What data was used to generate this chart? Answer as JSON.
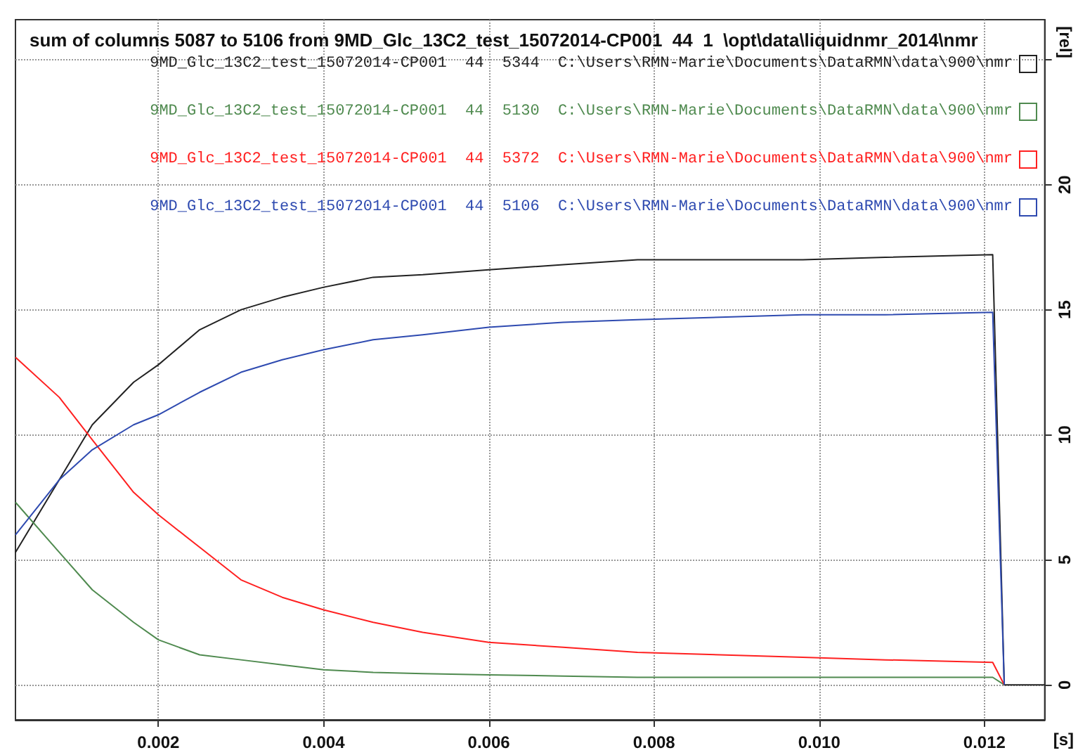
{
  "chart_data": {
    "type": "line",
    "title": "sum of columns 5087 to 5106 from 9MD_Glc_13C2_test_15072014-CP001  44  1  \\opt\\data\\liquidnmr_2014\\nmr",
    "xlabel": "[s]",
    "ylabel": "[rel]",
    "x": [
      0.00027,
      0.0008,
      0.0012,
      0.0017,
      0.002,
      0.0025,
      0.003,
      0.0035,
      0.004,
      0.0046,
      0.0052,
      0.006,
      0.0069,
      0.0078,
      0.0088,
      0.0098,
      0.0108,
      0.0121,
      0.01224
    ],
    "series": [
      {
        "name": "9MD_Glc_13C2_test_15072014-CP001  44  5344  C:\\Users\\RMN-Marie\\Documents\\DataRMN\\data\\900\\nmr",
        "color": "#222222",
        "x": [
          0.00027,
          0.0008,
          0.0012,
          0.0017,
          0.002,
          0.0025,
          0.003,
          0.0035,
          0.004,
          0.0046,
          0.0052,
          0.006,
          0.0069,
          0.0078,
          0.0088,
          0.0098,
          0.0108,
          0.0121,
          0.01224,
          0.01273
        ],
        "values": [
          5.3,
          8.2,
          10.4,
          12.1,
          12.8,
          14.2,
          15.0,
          15.5,
          15.9,
          16.3,
          16.4,
          16.6,
          16.8,
          17.0,
          17.0,
          17.0,
          17.1,
          17.2,
          0,
          0
        ]
      },
      {
        "name": "9MD_Glc_13C2_test_15072014-CP001  44  5130  C:\\Users\\RMN-Marie\\Documents\\DataRMN\\data\\900\\nmr",
        "color": "#4f8a4f",
        "values": [
          7.3,
          5.3,
          3.8,
          2.5,
          1.8,
          1.2,
          1.0,
          0.8,
          0.6,
          0.5,
          0.45,
          0.4,
          0.35,
          0.3,
          0.3,
          0.3,
          0.3,
          0.3,
          0
        ]
      },
      {
        "name": "9MD_Glc_13C2_test_15072014-CP001  44  5372  C:\\Users\\RMN-Marie\\Documents\\DataRMN\\data\\900\\nmr",
        "color": "#ff2020",
        "values": [
          13.1,
          11.5,
          9.8,
          7.7,
          6.8,
          5.5,
          4.2,
          3.5,
          3.0,
          2.5,
          2.1,
          1.7,
          1.5,
          1.3,
          1.2,
          1.1,
          1.0,
          0.9,
          0
        ]
      },
      {
        "name": "9MD_Glc_13C2_test_15072014-CP001  44  5106  C:\\Users\\RMN-Marie\\Documents\\DataRMN\\data\\900\\nmr",
        "color": "#2e4ab0",
        "values": [
          6.0,
          8.2,
          9.4,
          10.4,
          10.8,
          11.7,
          12.5,
          13.0,
          13.4,
          13.8,
          14.0,
          14.3,
          14.5,
          14.6,
          14.7,
          14.8,
          14.8,
          14.9,
          0
        ]
      }
    ],
    "xlim": [
      0.00027,
      0.01273
    ],
    "xticks": [
      {
        "value": 0.002,
        "label": "0.002"
      },
      {
        "value": 0.004,
        "label": "0.004"
      },
      {
        "value": 0.006,
        "label": "0.006"
      },
      {
        "value": 0.008,
        "label": "0.008"
      },
      {
        "value": 0.01,
        "label": "0.010"
      },
      {
        "value": 0.012,
        "label": "0.012"
      }
    ],
    "ylim": [
      -1.4,
      26.6
    ],
    "yticks": [
      0,
      5,
      10,
      15,
      20,
      {
        "value": 25,
        "label": null
      }
    ],
    "grid": true,
    "legend": "top right",
    "marker": "none",
    "line_style": "solid"
  }
}
